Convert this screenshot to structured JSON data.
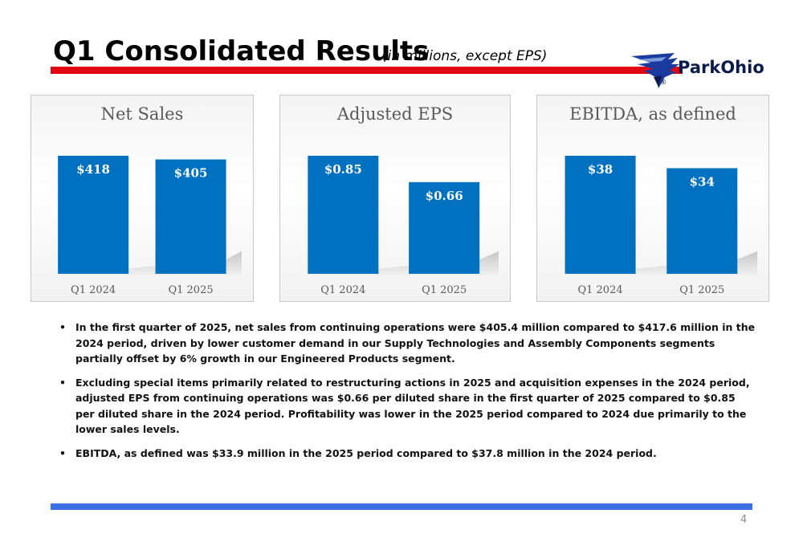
{
  "header": {
    "title": "Q1 Consolidated Results",
    "subtitle": "(in millions, except EPS)",
    "logo_text": "ParkOhio",
    "logo_mark": "®",
    "accent_red": "#e30613",
    "accent_blue": "#3b6fe6"
  },
  "chart_data": [
    {
      "type": "bar",
      "title": "Net Sales",
      "categories": [
        "Q1 2024",
        "Q1 2025"
      ],
      "values": [
        418,
        405
      ],
      "labels": [
        "$418",
        "$405"
      ],
      "color": "#0070c0"
    },
    {
      "type": "bar",
      "title": "Adjusted EPS",
      "categories": [
        "Q1 2024",
        "Q1 2025"
      ],
      "values": [
        0.85,
        0.66
      ],
      "labels": [
        "$0.85",
        "$0.66"
      ],
      "color": "#0070c0"
    },
    {
      "type": "bar",
      "title": "EBITDA, as defined",
      "categories": [
        "Q1 2024",
        "Q1 2025"
      ],
      "values": [
        38,
        34
      ],
      "labels": [
        "$38",
        "$34"
      ],
      "color": "#0070c0"
    }
  ],
  "bullets": [
    "In the first quarter of 2025, net sales from continuing operations were $405.4 million compared to $417.6 million in the 2024 period, driven by lower customer demand in our Supply Technologies and Assembly Components segments partially offset by 6% growth in our Engineered Products segment.",
    "Excluding special items primarily related to restructuring actions in 2025 and acquisition expenses in the 2024 period, adjusted EPS from continuing operations was $0.66 per diluted share in the first quarter of 2025 compared to $0.85 per diluted share in the 2024 period. Profitability was lower in the 2025 period compared to 2024 due primarily to the lower sales levels.",
    "EBITDA, as defined was $33.9 million in the 2025 period compared to $37.8 million in the 2024 period."
  ],
  "footer": {
    "page_number": "4"
  }
}
